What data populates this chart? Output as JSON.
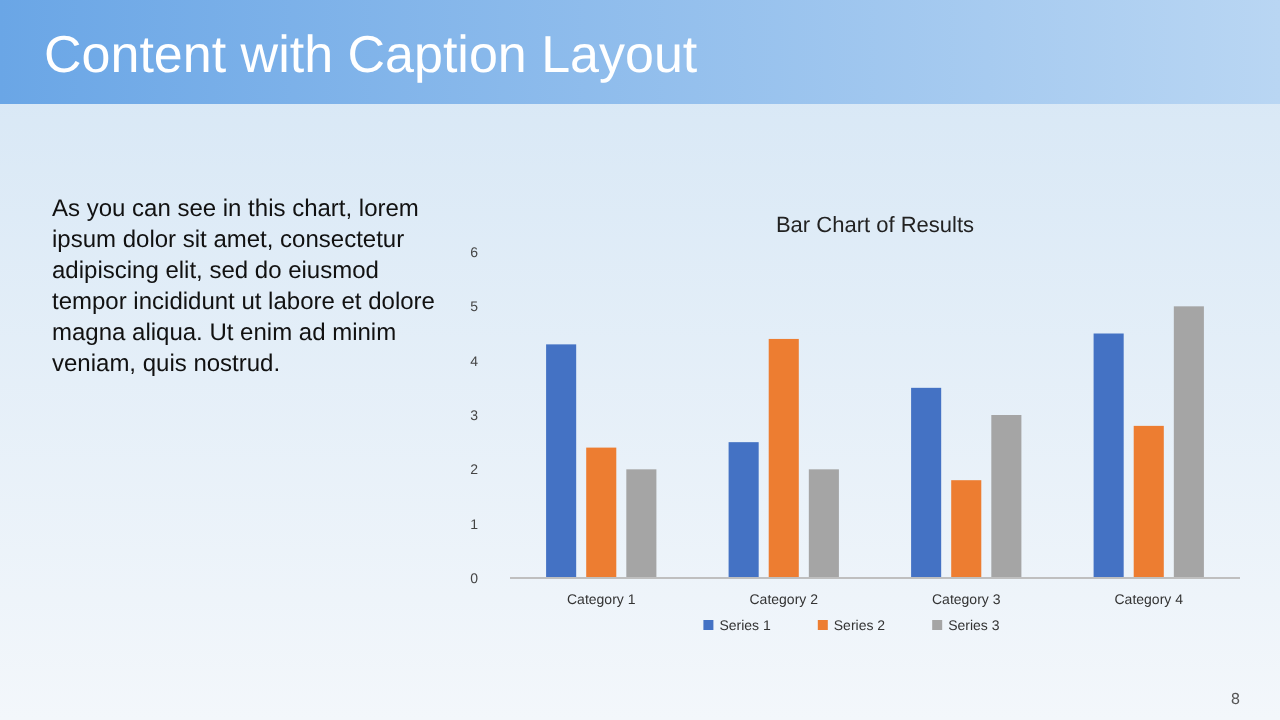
{
  "chart_data": {
    "type": "bar",
    "title": "Bar Chart of Results",
    "categories": [
      "Category 1",
      "Category 2",
      "Category 3",
      "Category 4"
    ],
    "series": [
      {
        "name": "Series 1",
        "color": "#4472c4",
        "values": [
          4.3,
          2.5,
          3.5,
          4.5
        ]
      },
      {
        "name": "Series 2",
        "color": "#ed7d31",
        "values": [
          2.4,
          4.4,
          1.8,
          2.8
        ]
      },
      {
        "name": "Series 3",
        "color": "#a5a5a5",
        "values": [
          2,
          2,
          3,
          5
        ]
      }
    ],
    "ylim": [
      0,
      6
    ],
    "yticks": [
      0,
      1,
      2,
      3,
      4,
      5,
      6
    ],
    "grid": false,
    "legend": "bottom",
    "annotations": [
      "Content with Caption Layout",
      "As you can see in this chart, lorem ipsum dolor sit amet, consectetur adipiscing elit, sed do eiusmod tempor incididunt ut labore et dolore magna aliqua. Ut enim ad minim veniam, quis nostrud.",
      "8"
    ]
  }
}
